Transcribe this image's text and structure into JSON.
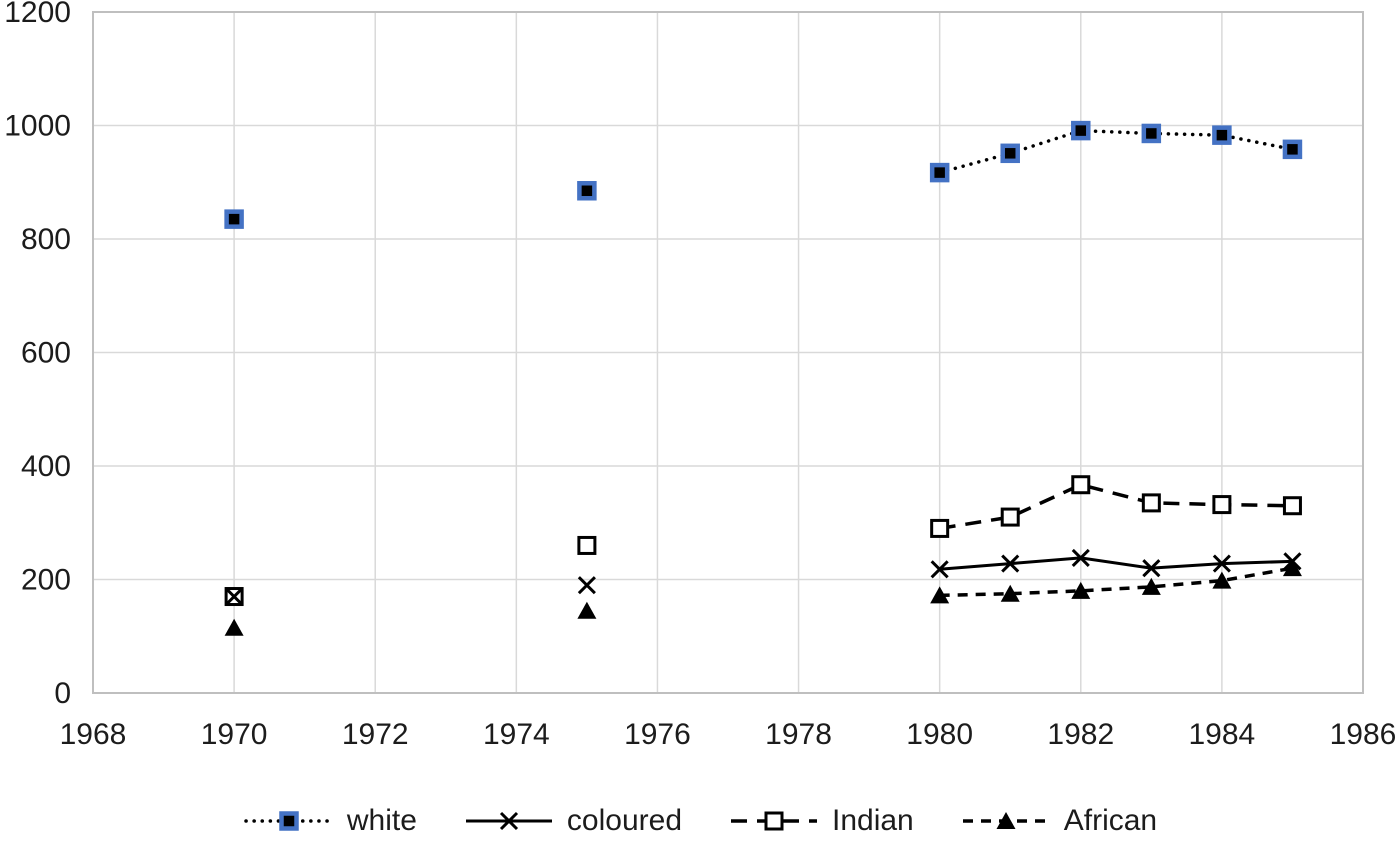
{
  "chart_data": {
    "type": "line",
    "title": "",
    "xlabel": "",
    "ylabel": "",
    "x": [
      1970,
      1975,
      1980,
      1981,
      1982,
      1983,
      1984,
      1985
    ],
    "series": [
      {
        "name": "white",
        "marker": "filled-square-blue-border",
        "line_style": "dotted",
        "values": [
          835,
          885,
          917,
          951,
          991,
          986,
          983,
          958
        ]
      },
      {
        "name": "coloured",
        "marker": "x-cross",
        "line_style": "solid",
        "values": [
          170,
          190,
          218,
          228,
          238,
          220,
          228,
          232
        ]
      },
      {
        "name": "Indian",
        "marker": "open-square",
        "line_style": "long-dash",
        "values": [
          170,
          260,
          290,
          310,
          367,
          335,
          332,
          330
        ]
      },
      {
        "name": "African",
        "marker": "filled-triangle",
        "line_style": "dash",
        "values": [
          115,
          145,
          172,
          175,
          180,
          187,
          198,
          220
        ]
      }
    ],
    "line_gaps_note": "lines connect only consecutive years; 1970 and 1975 points are isolated",
    "x_ticks": [
      1968,
      1970,
      1972,
      1974,
      1976,
      1978,
      1980,
      1982,
      1984,
      1986
    ],
    "y_ticks": [
      0,
      200,
      400,
      600,
      800,
      1000,
      1200
    ],
    "xlim": [
      1968,
      1986
    ],
    "ylim": [
      0,
      1200
    ],
    "grid": true,
    "legend_position": "bottom",
    "legend": [
      "white",
      "coloured",
      "Indian",
      "African"
    ],
    "colors": {
      "series_line": "#000000",
      "white_marker_border": "#4472C4",
      "gridline": "#D9D9D9",
      "axis_line": "#BFBFBF",
      "axis_text": "#1c1c1c",
      "background": "#ffffff"
    }
  }
}
